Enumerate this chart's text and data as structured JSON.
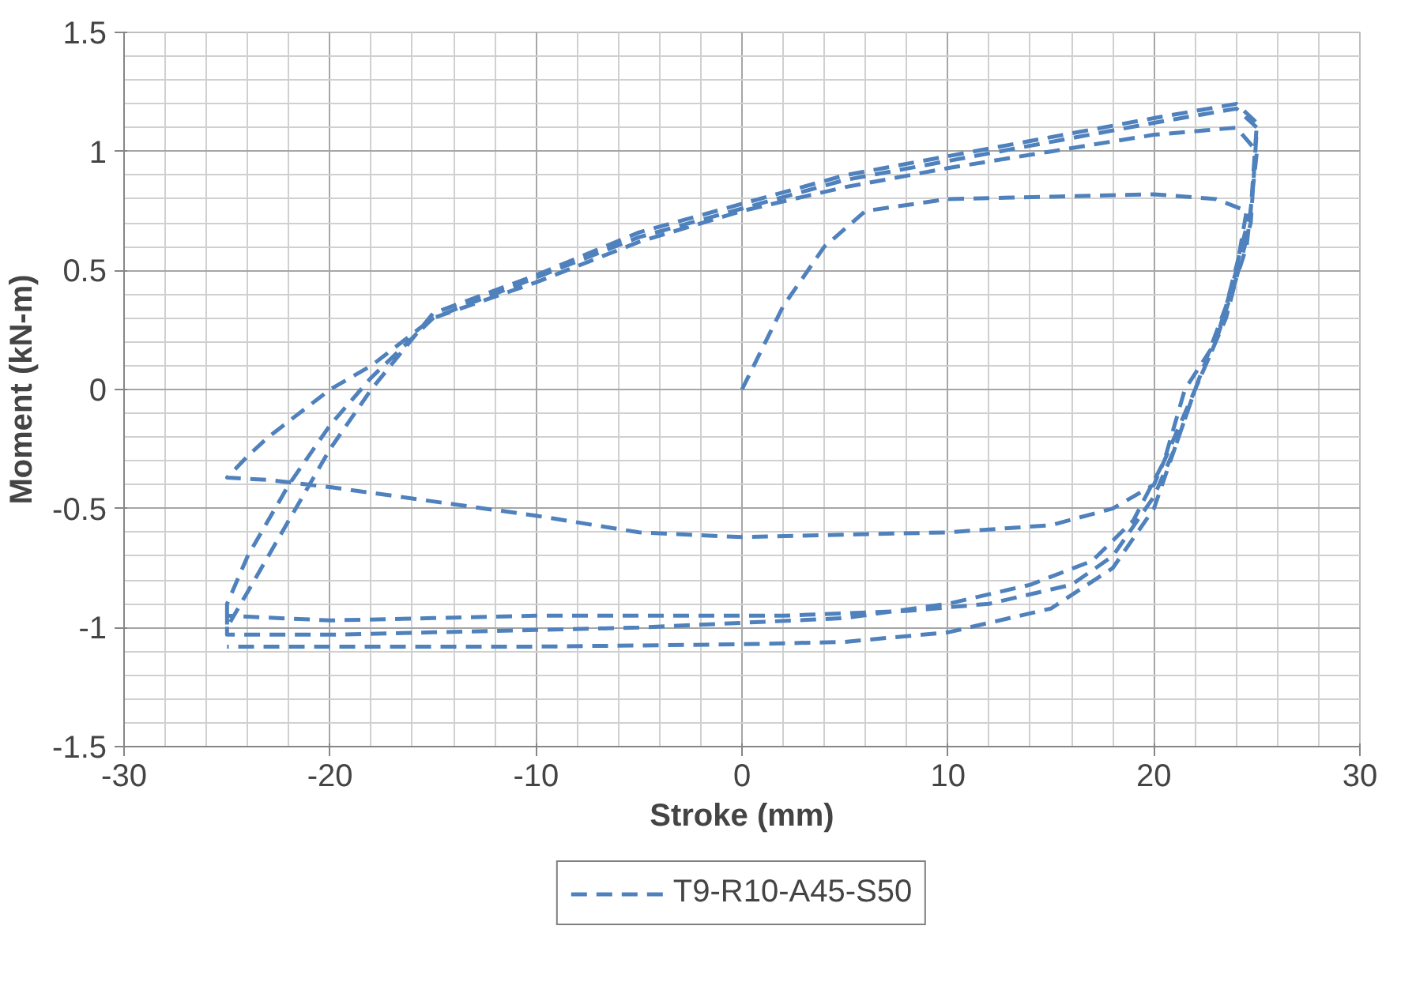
{
  "chart_data": {
    "type": "line",
    "xlabel": "Stroke (mm)",
    "ylabel": "Moment (kN-m)",
    "xlim": [
      -30,
      30
    ],
    "xticks": [
      -30,
      -20,
      -10,
      0,
      10,
      20,
      30
    ],
    "ylim": [
      -1.5,
      1.5
    ],
    "yticks": [
      -1.5,
      -1,
      -0.5,
      0,
      0.5,
      1,
      1.5
    ],
    "grid": true,
    "legend": "bottom",
    "line_style": "dashed",
    "marker": "none",
    "series": [
      {
        "name": "T9-R10-A45-S50",
        "color": "#4f81bd",
        "x": [
          0,
          2,
          4,
          6,
          10,
          15,
          20,
          23,
          24.5,
          24,
          23,
          22,
          21,
          20,
          18,
          15,
          10,
          5,
          0,
          -5,
          -10,
          -15,
          -20,
          -23,
          -25,
          -24,
          -23,
          -20,
          -18,
          -15,
          -10,
          -5,
          0,
          5,
          10,
          15,
          20,
          24,
          25,
          24.5,
          23,
          21.5,
          20.5,
          19,
          17,
          14,
          10,
          5,
          0,
          -5,
          -10,
          -15,
          -20,
          -25,
          -25,
          -24,
          -22,
          -20,
          -18,
          -15,
          -10,
          -5,
          0,
          5,
          10,
          15,
          20,
          24,
          25,
          24.7,
          23.5,
          22,
          21,
          20,
          18,
          16,
          12,
          8,
          2,
          -5,
          -10,
          -15,
          -20,
          -25,
          -25,
          -24,
          -22,
          -20,
          -18,
          -15,
          -10,
          -5,
          0,
          5,
          10,
          15,
          20,
          24,
          25,
          24.7,
          23.5,
          22,
          21,
          20,
          18,
          15,
          10,
          5,
          0,
          -10,
          -20,
          -25
        ],
        "values": [
          0,
          0.35,
          0.6,
          0.75,
          0.8,
          0.81,
          0.82,
          0.8,
          0.75,
          0.5,
          0.2,
          0,
          -0.2,
          -0.4,
          -0.5,
          -0.57,
          -0.6,
          -0.61,
          -0.62,
          -0.6,
          -0.53,
          -0.47,
          -0.41,
          -0.38,
          -0.37,
          -0.28,
          -0.2,
          0,
          0.1,
          0.3,
          0.45,
          0.62,
          0.75,
          0.85,
          0.93,
          1.0,
          1.07,
          1.1,
          1.0,
          0.6,
          0.2,
          0,
          -0.3,
          -0.55,
          -0.72,
          -0.82,
          -0.9,
          -0.96,
          -0.98,
          -1.0,
          -1.01,
          -1.02,
          -1.03,
          -1.03,
          -0.9,
          -0.7,
          -0.4,
          -0.15,
          0.05,
          0.3,
          0.47,
          0.64,
          0.76,
          0.88,
          0.96,
          1.04,
          1.12,
          1.18,
          1.1,
          0.7,
          0.3,
          0,
          -0.25,
          -0.45,
          -0.7,
          -0.82,
          -0.9,
          -0.93,
          -0.95,
          -0.95,
          -0.95,
          -0.96,
          -0.97,
          -0.95,
          -1.0,
          -0.85,
          -0.55,
          -0.25,
          0.0,
          0.32,
          0.48,
          0.66,
          0.78,
          0.9,
          0.98,
          1.06,
          1.14,
          1.2,
          1.12,
          0.75,
          0.35,
          0,
          -0.25,
          -0.5,
          -0.75,
          -0.92,
          -1.02,
          -1.06,
          -1.07,
          -1.08,
          -1.08,
          -1.08
        ]
      }
    ]
  }
}
